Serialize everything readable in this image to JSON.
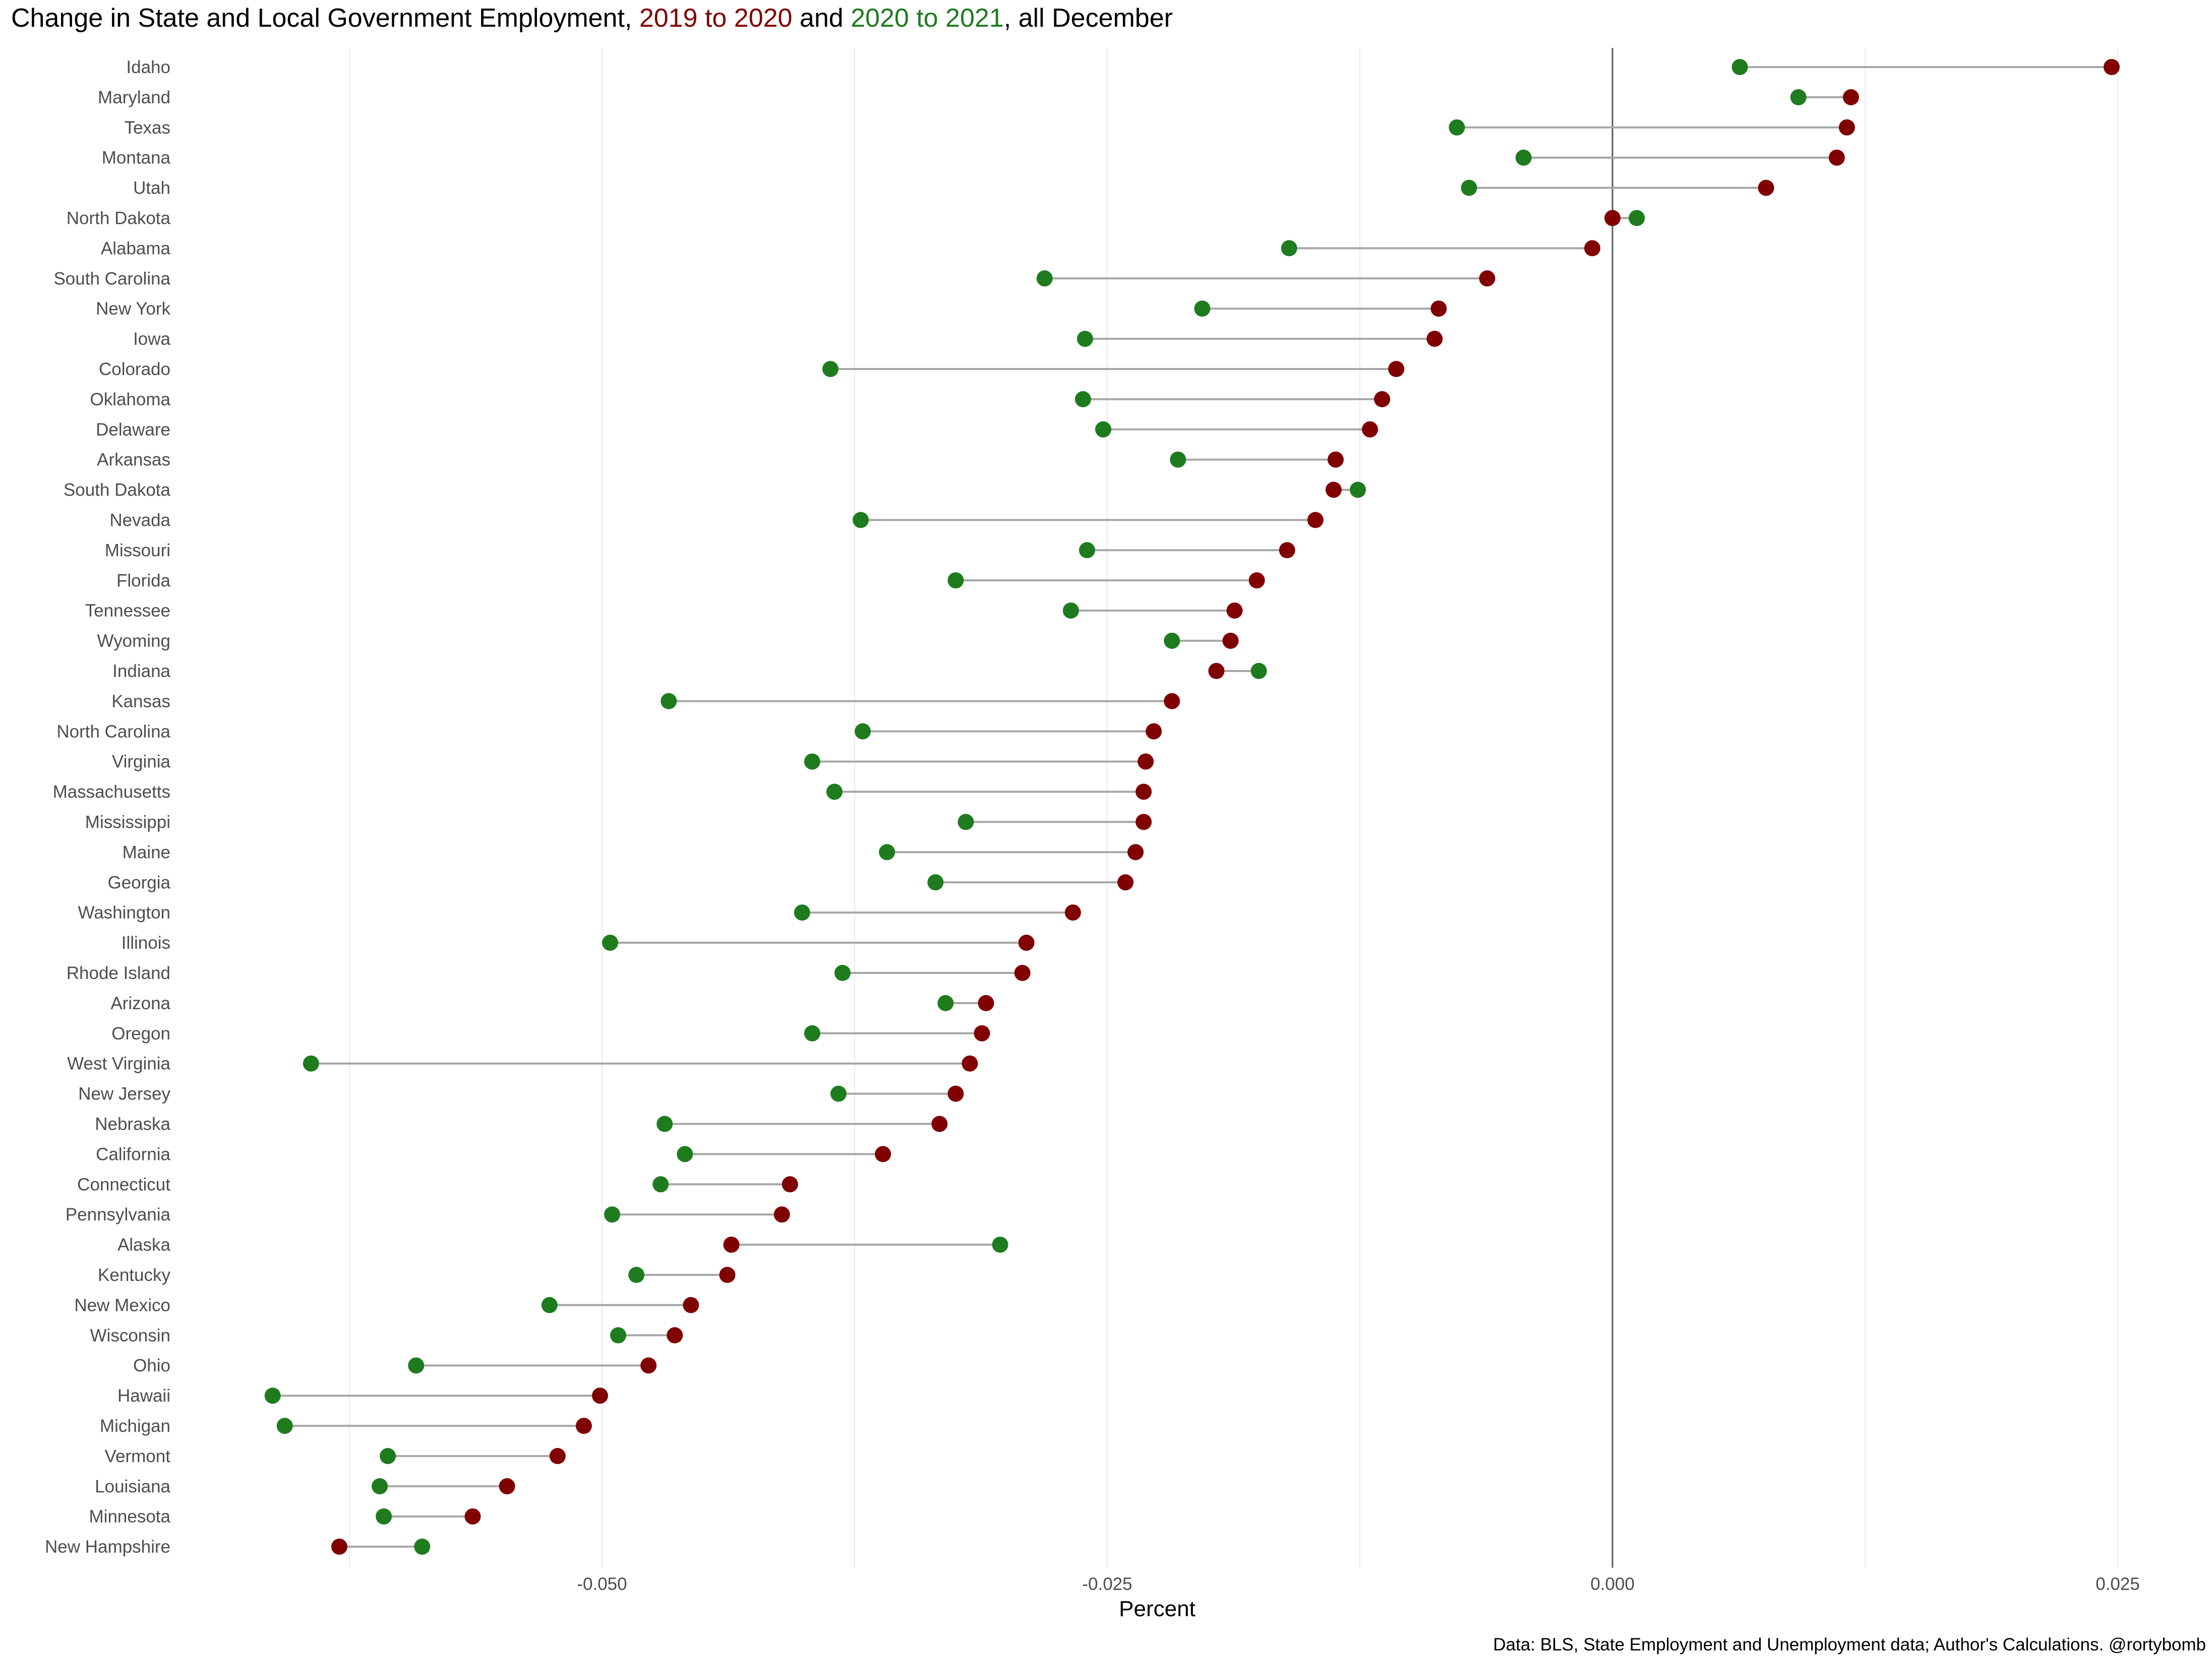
{
  "title": {
    "prefix": "Change in State and Local Government Employment, ",
    "period1": "2019 to 2020",
    "middle": " and ",
    "period2": "2020 to 2021",
    "suffix": ", all December"
  },
  "colors": {
    "period1": "#800000",
    "period2": "#1e7b1e",
    "connector": "#a6a6a6",
    "zero_line": "#595959",
    "grid": "#ebebeb",
    "label_text": "#4d4d4d"
  },
  "chart_data": {
    "type": "dumbbell",
    "xlabel": "Percent",
    "ylabel": "",
    "xlim": [
      -0.0665,
      0.0275
    ],
    "x_ticks": [
      -0.05,
      -0.025,
      0.0,
      0.025
    ],
    "x_tick_labels": [
      "-0.050",
      "-0.025",
      "0.000",
      "0.025"
    ],
    "x_minor_grid": [
      -0.0625,
      -0.0375,
      -0.0125,
      0.0125
    ],
    "zero_line": 0,
    "series": [
      {
        "name": "2019 to 2020",
        "color": "#800000"
      },
      {
        "name": "2020 to 2021",
        "color": "#1e7b1e"
      }
    ],
    "states": [
      {
        "name": "Idaho",
        "v2020": 0.0247,
        "v2021": 0.0063
      },
      {
        "name": "Maryland",
        "v2020": 0.0118,
        "v2021": 0.0092
      },
      {
        "name": "Texas",
        "v2020": 0.0116,
        "v2021": -0.0077
      },
      {
        "name": "Montana",
        "v2020": 0.0111,
        "v2021": -0.0044
      },
      {
        "name": "Utah",
        "v2020": 0.0076,
        "v2021": -0.0071
      },
      {
        "name": "North Dakota",
        "v2020": 0.0,
        "v2021": 0.0012
      },
      {
        "name": "Alabama",
        "v2020": -0.001,
        "v2021": -0.016
      },
      {
        "name": "South Carolina",
        "v2020": -0.0062,
        "v2021": -0.0281
      },
      {
        "name": "New York",
        "v2020": -0.0086,
        "v2021": -0.0203
      },
      {
        "name": "Iowa",
        "v2020": -0.0088,
        "v2021": -0.0261
      },
      {
        "name": "Colorado",
        "v2020": -0.0107,
        "v2021": -0.0387
      },
      {
        "name": "Oklahoma",
        "v2020": -0.0114,
        "v2021": -0.0262
      },
      {
        "name": "Delaware",
        "v2020": -0.012,
        "v2021": -0.0252
      },
      {
        "name": "Arkansas",
        "v2020": -0.0137,
        "v2021": -0.0215
      },
      {
        "name": "South Dakota",
        "v2020": -0.0138,
        "v2021": -0.0126
      },
      {
        "name": "Nevada",
        "v2020": -0.0147,
        "v2021": -0.0372
      },
      {
        "name": "Missouri",
        "v2020": -0.0161,
        "v2021": -0.026
      },
      {
        "name": "Florida",
        "v2020": -0.0176,
        "v2021": -0.0325
      },
      {
        "name": "Tennessee",
        "v2020": -0.0187,
        "v2021": -0.0268
      },
      {
        "name": "Wyoming",
        "v2020": -0.0189,
        "v2021": -0.0218
      },
      {
        "name": "Indiana",
        "v2020": -0.0196,
        "v2021": -0.0175
      },
      {
        "name": "Kansas",
        "v2020": -0.0218,
        "v2021": -0.0467
      },
      {
        "name": "North Carolina",
        "v2020": -0.0227,
        "v2021": -0.0371
      },
      {
        "name": "Virginia",
        "v2020": -0.0231,
        "v2021": -0.0396
      },
      {
        "name": "Massachusetts",
        "v2020": -0.0232,
        "v2021": -0.0385
      },
      {
        "name": "Mississippi",
        "v2020": -0.0232,
        "v2021": -0.032
      },
      {
        "name": "Maine",
        "v2020": -0.0236,
        "v2021": -0.0359
      },
      {
        "name": "Georgia",
        "v2020": -0.0241,
        "v2021": -0.0335
      },
      {
        "name": "Washington",
        "v2020": -0.0267,
        "v2021": -0.0401
      },
      {
        "name": "Illinois",
        "v2020": -0.029,
        "v2021": -0.0496
      },
      {
        "name": "Rhode Island",
        "v2020": -0.0292,
        "v2021": -0.0381
      },
      {
        "name": "Arizona",
        "v2020": -0.031,
        "v2021": -0.033
      },
      {
        "name": "Oregon",
        "v2020": -0.0312,
        "v2021": -0.0396
      },
      {
        "name": "West Virginia",
        "v2020": -0.0318,
        "v2021": -0.0644
      },
      {
        "name": "New Jersey",
        "v2020": -0.0325,
        "v2021": -0.0383
      },
      {
        "name": "Nebraska",
        "v2020": -0.0333,
        "v2021": -0.0469
      },
      {
        "name": "California",
        "v2020": -0.0361,
        "v2021": -0.0459
      },
      {
        "name": "Connecticut",
        "v2020": -0.0407,
        "v2021": -0.0471
      },
      {
        "name": "Pennsylvania",
        "v2020": -0.0411,
        "v2021": -0.0495
      },
      {
        "name": "Alaska",
        "v2020": -0.0436,
        "v2021": -0.0303
      },
      {
        "name": "Kentucky",
        "v2020": -0.0438,
        "v2021": -0.0483
      },
      {
        "name": "New Mexico",
        "v2020": -0.0456,
        "v2021": -0.0526
      },
      {
        "name": "Wisconsin",
        "v2020": -0.0464,
        "v2021": -0.0492
      },
      {
        "name": "Ohio",
        "v2020": -0.0477,
        "v2021": -0.0592
      },
      {
        "name": "Hawaii",
        "v2020": -0.0501,
        "v2021": -0.0663
      },
      {
        "name": "Michigan",
        "v2020": -0.0509,
        "v2021": -0.0657
      },
      {
        "name": "Vermont",
        "v2020": -0.0522,
        "v2021": -0.0606
      },
      {
        "name": "Louisiana",
        "v2020": -0.0547,
        "v2021": -0.061
      },
      {
        "name": "Minnesota",
        "v2020": -0.0564,
        "v2021": -0.0608
      },
      {
        "name": "New Hampshire",
        "v2020": -0.063,
        "v2021": -0.0589
      }
    ]
  },
  "caption": "Data: BLS, State Employment and Unemployment data; Author's Calculations. @rortybomb"
}
